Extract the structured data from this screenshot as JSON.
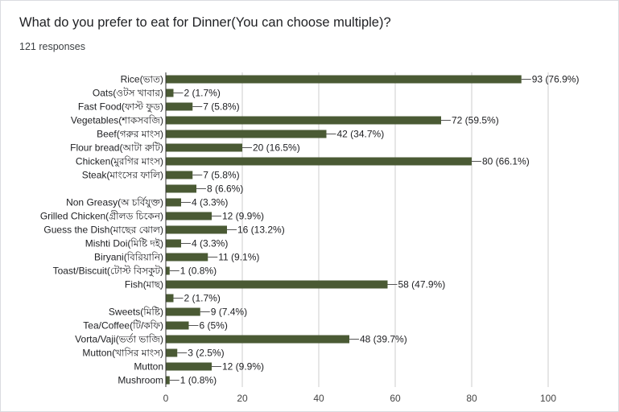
{
  "title": "What do you prefer to eat for Dinner(You can choose multiple)?",
  "responses": "121 responses",
  "colors": {
    "bar": "#4a5a34",
    "grid": "#cccccc",
    "axis": "#333333"
  },
  "chart_data": {
    "type": "bar",
    "orientation": "horizontal",
    "categories": [
      "Rice(ভাত)",
      "Oats(ওটস খাবার)",
      "Fast Food(ফাস্ট ফুড)",
      "Vegetables(শাকসবজি)",
      "Beef(গরুর মাংস)",
      "Flour bread(আটা রুটি)",
      "Chicken(মুরগির মাংস)",
      "Steak(মাংসের ফালি)",
      "",
      "Non Greasy(অ চর্বিযুক্ত)",
      "Grilled Chicken(গ্রীলড চিকেন)",
      "Guess the Dish(মাছের ঝোল)",
      "Mishti Doi(মিষ্টি দই)",
      "Biryani(বিরিয়ানি)",
      "Toast/Biscuit(টোস্ট বিসকুট)",
      "Fish(মাছ)",
      "",
      "Sweets(মিষ্টি)",
      "Tea/Coffee(টি/কফি)",
      "Vorta/Vaji(ভর্তা ভাজি)",
      "Mutton(খাসির মাংস)",
      "Mutton",
      "Mushroom"
    ],
    "values": [
      93,
      2,
      7,
      72,
      42,
      20,
      80,
      7,
      8,
      4,
      12,
      16,
      4,
      11,
      1,
      58,
      2,
      9,
      6,
      48,
      3,
      12,
      1
    ],
    "labels": [
      "93 (76.9%)",
      "2 (1.7%)",
      "7 (5.8%)",
      "72 (59.5%)",
      "42 (34.7%)",
      "20 (16.5%)",
      "80 (66.1%)",
      "7 (5.8%)",
      "8 (6.6%)",
      "4 (3.3%)",
      "12 (9.9%)",
      "16 (13.2%)",
      "4 (3.3%)",
      "11 (9.1%)",
      "1 (0.8%)",
      "58 (47.9%)",
      "2 (1.7%)",
      "9 (7.4%)",
      "6 (5%)",
      "48 (39.7%)",
      "3 (2.5%)",
      "12 (9.9%)",
      "1 (0.8%)"
    ],
    "xlim": [
      0,
      100
    ],
    "xticks": [
      0,
      20,
      40,
      60,
      80,
      100
    ],
    "grid": true
  }
}
